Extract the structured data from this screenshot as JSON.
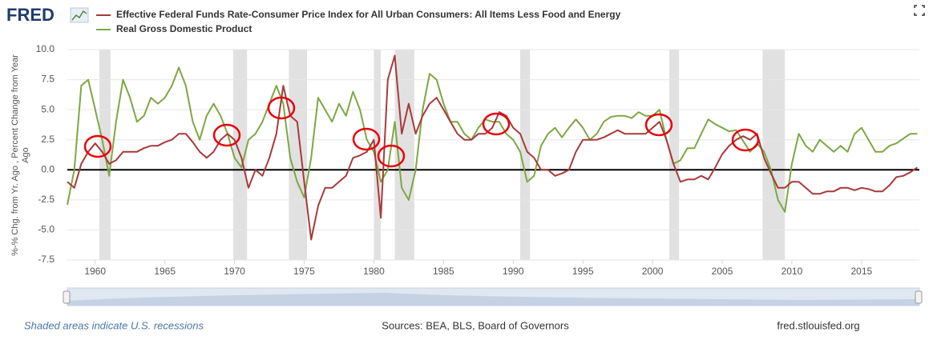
{
  "logo": "FRED",
  "chart_data": {
    "type": "line",
    "y_label": "%-% Chg. from Yr. Ago , Percent Change from Year Ago",
    "x": [
      1958.0,
      1958.5,
      1959.0,
      1959.5,
      1960.0,
      1960.5,
      1961.0,
      1961.5,
      1962.0,
      1962.5,
      1963.0,
      1963.5,
      1964.0,
      1964.5,
      1965.0,
      1965.5,
      1966.0,
      1966.5,
      1967.0,
      1967.5,
      1968.0,
      1968.5,
      1969.0,
      1969.5,
      1970.0,
      1970.5,
      1971.0,
      1971.5,
      1972.0,
      1972.5,
      1973.0,
      1973.5,
      1974.0,
      1974.5,
      1975.0,
      1975.5,
      1976.0,
      1976.5,
      1977.0,
      1977.5,
      1978.0,
      1978.5,
      1979.0,
      1979.5,
      1980.0,
      1980.5,
      1981.0,
      1981.5,
      1982.0,
      1982.5,
      1983.0,
      1983.5,
      1984.0,
      1984.5,
      1985.0,
      1985.5,
      1986.0,
      1986.5,
      1987.0,
      1987.5,
      1988.0,
      1988.5,
      1989.0,
      1989.5,
      1990.0,
      1990.5,
      1991.0,
      1991.5,
      1992.0,
      1992.5,
      1993.0,
      1993.5,
      1994.0,
      1994.5,
      1995.0,
      1995.5,
      1996.0,
      1996.5,
      1997.0,
      1997.5,
      1998.0,
      1998.5,
      1999.0,
      1999.5,
      2000.0,
      2000.5,
      2001.0,
      2001.5,
      2002.0,
      2002.5,
      2003.0,
      2003.5,
      2004.0,
      2004.5,
      2005.0,
      2005.5,
      2006.0,
      2006.5,
      2007.0,
      2007.5,
      2008.0,
      2008.5,
      2009.0,
      2009.5,
      2010.0,
      2010.5,
      2011.0,
      2011.5,
      2012.0,
      2012.5,
      2013.0,
      2013.5,
      2014.0,
      2014.5,
      2015.0,
      2015.5,
      2016.0,
      2016.5,
      2017.0,
      2017.5,
      2018.0,
      2018.5,
      2019.0
    ],
    "series": [
      {
        "name": "Effective Federal Funds Rate-Consumer Price Index for All Urban Consumers: All Items Less Food and Energy",
        "color": "#a83a3a",
        "values": [
          -1,
          -1.5,
          0.5,
          1.5,
          2.2,
          1.5,
          0.5,
          0.8,
          1.5,
          1.5,
          1.5,
          1.8,
          2.0,
          2.0,
          2.3,
          2.5,
          3.0,
          3.0,
          2.3,
          1.5,
          1.0,
          1.5,
          2.5,
          3.0,
          2.5,
          1.0,
          -1.5,
          0,
          -0.5,
          1,
          3,
          7.0,
          4.5,
          4,
          -1,
          -5.8,
          -3,
          -1.5,
          -1.5,
          -1.0,
          -0.5,
          1,
          1.2,
          1.5,
          2.5,
          -4.0,
          7.5,
          9.5,
          3,
          5.5,
          3,
          4.5,
          5.5,
          6,
          5,
          4,
          3,
          2.5,
          2.5,
          3,
          3,
          3.5,
          4.8,
          4.5,
          3.5,
          3,
          1.5,
          1,
          0,
          0,
          -0.5,
          -0.3,
          0,
          1.5,
          2.5,
          2.5,
          2.5,
          2.7,
          3,
          3.3,
          3,
          3,
          3,
          3,
          3.5,
          4,
          2.5,
          0.5,
          -1,
          -0.8,
          -0.8,
          -0.5,
          -0.8,
          0.2,
          1.3,
          2,
          2.5,
          2.8,
          2.5,
          3,
          1,
          -0.3,
          -1.5,
          -1.5,
          -1,
          -1,
          -1.5,
          -2,
          -2,
          -1.8,
          -1.8,
          -1.5,
          -1.5,
          -1.7,
          -1.5,
          -1.6,
          -1.8,
          -1.8,
          -1.3,
          -0.6,
          -0.5,
          -0.2,
          0.2
        ]
      },
      {
        "name": "Real Gross Domestic Product",
        "color": "#7ea743",
        "values": [
          -2.9,
          0,
          7.0,
          7.5,
          5,
          2.5,
          -0.5,
          4,
          7.5,
          6,
          4,
          4.5,
          6,
          5.5,
          6,
          7,
          8.5,
          7,
          4,
          2.5,
          4.5,
          5.5,
          4.5,
          3,
          1,
          0.2,
          2.5,
          3,
          4,
          5.5,
          7.0,
          5.5,
          1,
          -1,
          -2.3,
          1,
          6,
          5,
          4,
          5.5,
          4.5,
          6.5,
          5,
          2.5,
          1.5,
          -1.0,
          0,
          4,
          -1.5,
          -2.5,
          0,
          5,
          8,
          7.5,
          5.5,
          4,
          4,
          3,
          2.5,
          3.5,
          4.2,
          4.0,
          4.0,
          3.0,
          2.5,
          1.5,
          -1.0,
          -0.5,
          2,
          3,
          3.5,
          2.7,
          3.5,
          4.2,
          3.5,
          2.5,
          3,
          4,
          4.4,
          4.5,
          4.5,
          4.3,
          4.8,
          4.5,
          4.5,
          5,
          2.5,
          0.5,
          0.8,
          1.8,
          1.8,
          3,
          4.2,
          3.8,
          3.5,
          3.2,
          3.3,
          2.4,
          1.5,
          2.2,
          1.5,
          0,
          -2.5,
          -3.5,
          0.5,
          3,
          2,
          1.5,
          2.5,
          2,
          1.5,
          2,
          1.5,
          3,
          3.5,
          2.5,
          1.5,
          1.5,
          2,
          2.2,
          2.6,
          3,
          3
        ]
      }
    ],
    "recessions": [
      [
        1960.3,
        1961.1
      ],
      [
        1969.9,
        1970.9
      ],
      [
        1973.9,
        1975.2
      ],
      [
        1980.0,
        1980.5
      ],
      [
        1981.5,
        1982.9
      ],
      [
        1990.5,
        1991.2
      ],
      [
        2001.2,
        2001.9
      ],
      [
        2007.9,
        2009.5
      ]
    ],
    "xlim": [
      1958,
      2019.15
    ],
    "xticks": [
      1960,
      1965,
      1970,
      1975,
      1980,
      1985,
      1990,
      1995,
      2000,
      2005,
      2010,
      2015
    ],
    "ylim": [
      -7.5,
      10
    ],
    "yticks": [
      {
        "value": 10,
        "label": "10.0"
      },
      7.5,
      {
        "value": 5,
        "label": "5.0"
      },
      2.5,
      {
        "value": 0,
        "label": "0.0"
      },
      -2.5,
      {
        "value": -5,
        "label": "-5.0"
      },
      -7.5
    ],
    "grid": true,
    "recession_note": "Shaded areas indicate U.S. recessions",
    "source": "Sources: BEA, BLS, Board of Governors",
    "url": "fred.stlouisfed.org"
  }
}
